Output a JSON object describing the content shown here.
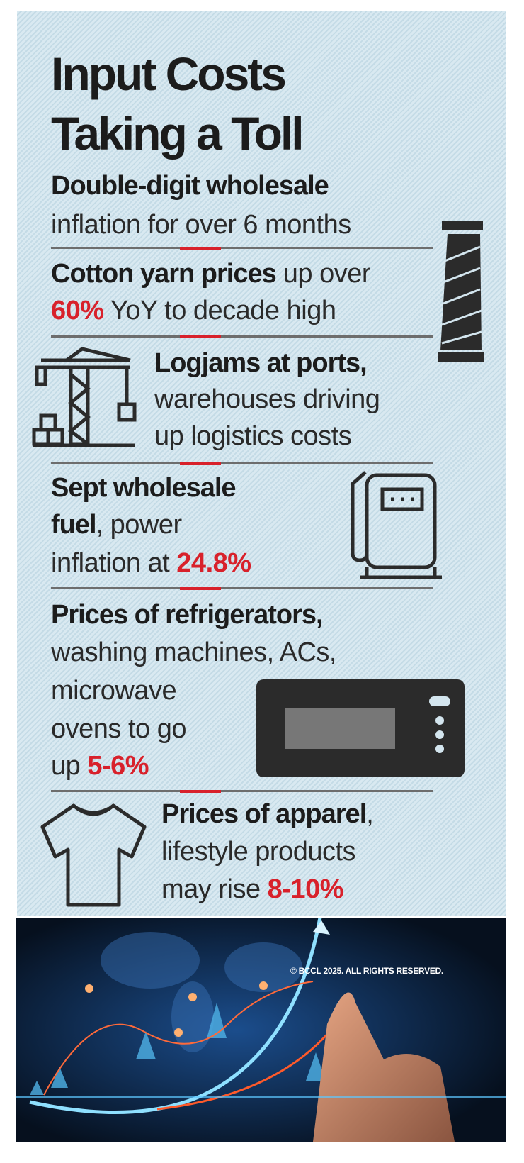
{
  "title": {
    "line1": "Input Costs",
    "line2": "Taking a Toll"
  },
  "items": [
    {
      "lines": [
        [
          {
            "t": "Double-digit wholesale",
            "s": "b"
          }
        ],
        [
          {
            "t": "inflation for over 6 months",
            "s": "n"
          }
        ]
      ]
    },
    {
      "lines": [
        [
          {
            "t": "Cotton yarn prices",
            "s": "b"
          },
          {
            "t": " up over",
            "s": "n"
          }
        ],
        [
          {
            "t": "60%",
            "s": "r"
          },
          {
            "t": " YoY to decade high",
            "s": "n"
          }
        ]
      ],
      "icon": "thread-spool-icon"
    },
    {
      "lines": [
        [
          {
            "t": "Logjams at ports,",
            "s": "b"
          }
        ],
        [
          {
            "t": "warehouses driving",
            "s": "n"
          }
        ],
        [
          {
            "t": "up logistics costs",
            "s": "n"
          }
        ]
      ],
      "icon": "crane-icon"
    },
    {
      "lines": [
        [
          {
            "t": "Sept wholesale",
            "s": "b"
          }
        ],
        [
          {
            "t": "fuel",
            "s": "b"
          },
          {
            "t": ", power",
            "s": "n"
          }
        ],
        [
          {
            "t": "inflation at ",
            "s": "n"
          },
          {
            "t": "24.8%",
            "s": "r"
          }
        ]
      ],
      "icon": "fuel-pump-icon"
    },
    {
      "lines": [
        [
          {
            "t": "Prices of refrigerators,",
            "s": "b"
          }
        ],
        [
          {
            "t": "washing machines, ACs,",
            "s": "n"
          }
        ],
        [
          {
            "t": "microwave",
            "s": "n"
          }
        ],
        [
          {
            "t": "ovens to go",
            "s": "n"
          }
        ],
        [
          {
            "t": "up ",
            "s": "n"
          },
          {
            "t": "5-6%",
            "s": "r"
          }
        ]
      ],
      "icon": "microwave-icon"
    },
    {
      "lines": [
        [
          {
            "t": "Prices of apparel",
            "s": "b"
          },
          {
            "t": ",",
            "s": "n"
          }
        ],
        [
          {
            "t": "lifestyle products",
            "s": "n"
          }
        ],
        [
          {
            "t": "may rise ",
            "s": "n"
          },
          {
            "t": "8-10%",
            "s": "r"
          }
        ]
      ],
      "icon": "t-shirt-icon"
    }
  ],
  "colors": {
    "accent": "#d8212b",
    "background": "#d3e5ee",
    "text": "#1c1c1c"
  },
  "photo": {
    "icon": "rising-chart-photo",
    "copyright": "© BCCL 2025. ALL RIGHTS RESERVED."
  }
}
